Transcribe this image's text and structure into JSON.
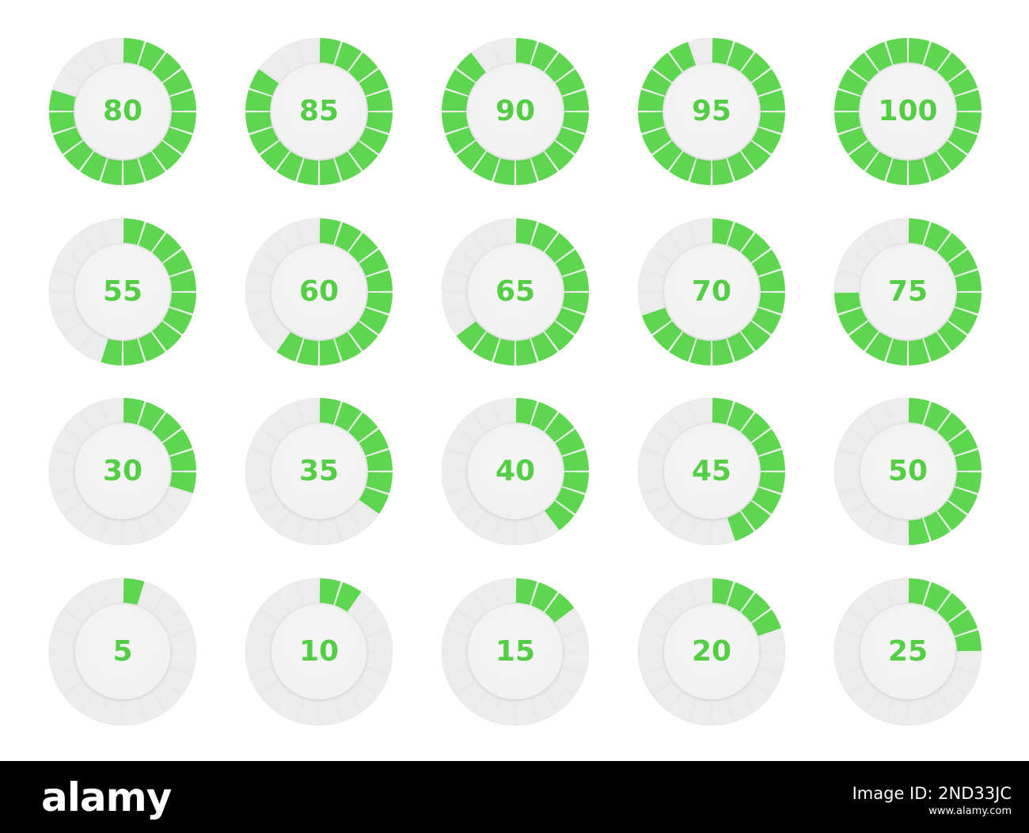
{
  "colors": {
    "accent": "#5fd64f",
    "track": "#ededed",
    "track_edge": "#e3e3e3",
    "center": "#f1f1f1",
    "label": "#54cf45",
    "footer_bg": "#000000",
    "footer_text": "#ffffff"
  },
  "segments_per_ring": 20,
  "indicators": [
    [
      {
        "label": "80",
        "value": 80
      },
      {
        "label": "85",
        "value": 85
      },
      {
        "label": "90",
        "value": 90
      },
      {
        "label": "95",
        "value": 95
      },
      {
        "label": "100",
        "value": 100
      }
    ],
    [
      {
        "label": "55",
        "value": 55
      },
      {
        "label": "60",
        "value": 60
      },
      {
        "label": "65",
        "value": 65
      },
      {
        "label": "70",
        "value": 70
      },
      {
        "label": "75",
        "value": 75
      }
    ],
    [
      {
        "label": "30",
        "value": 30
      },
      {
        "label": "35",
        "value": 35
      },
      {
        "label": "40",
        "value": 40
      },
      {
        "label": "45",
        "value": 45
      },
      {
        "label": "50",
        "value": 50
      }
    ],
    [
      {
        "label": "5",
        "value": 5
      },
      {
        "label": "10",
        "value": 10
      },
      {
        "label": "15",
        "value": 15
      },
      {
        "label": "20",
        "value": 20
      },
      {
        "label": "25",
        "value": 25
      }
    ]
  ],
  "footer": {
    "brand": "alamy",
    "image_id": "Image ID: 2ND33JC",
    "url": "www.alamy.com"
  }
}
